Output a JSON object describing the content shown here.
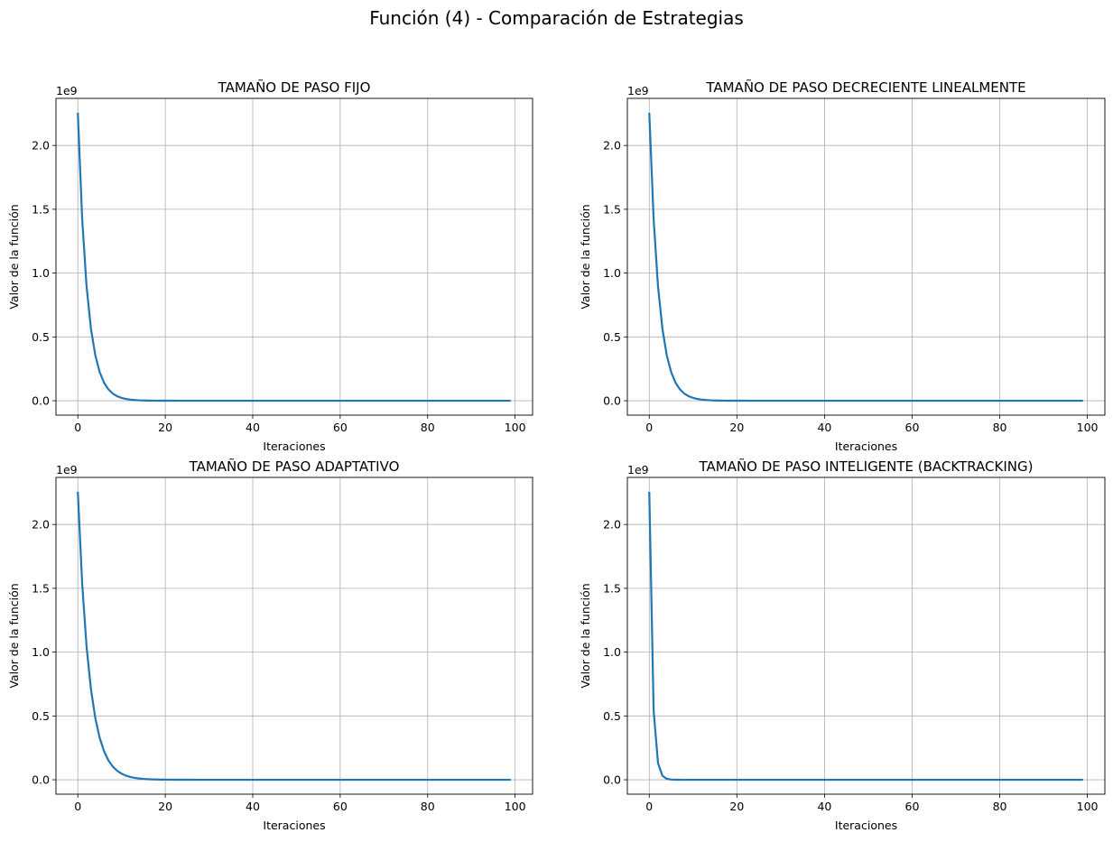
{
  "figure": {
    "title": "Función (4) - Comparación de Estrategias",
    "line_color": "#1f77b4",
    "grid_color": "#b0b0b0"
  },
  "chart_data": [
    {
      "type": "line",
      "title": "TAMAÑO DE PASO FIJO",
      "xlabel": "Iteraciones",
      "ylabel": "Valor de la función",
      "offset_text": "1e9",
      "grid": true,
      "xlim": [
        -5,
        104
      ],
      "ylim": [
        -0.1128,
        2.3688
      ],
      "xticks": [
        0,
        20,
        40,
        60,
        80,
        100
      ],
      "yticks": [
        0.0,
        0.5,
        1.0,
        1.5,
        2.0
      ],
      "ytick_labels": [
        "0.0",
        "0.5",
        "1.0",
        "1.5",
        "2.0"
      ],
      "y_scale_factor": 1000000000,
      "series": [
        {
          "x0": 0,
          "x1": 99,
          "y0": 2.256,
          "decay": 0.63,
          "floor": 0.0
        }
      ]
    },
    {
      "type": "line",
      "title": "TAMAÑO DE PASO DECRECIENTE LINEALMENTE",
      "xlabel": "Iteraciones",
      "ylabel": "Valor de la función",
      "offset_text": "1e9",
      "grid": true,
      "xlim": [
        -5,
        104
      ],
      "ylim": [
        -0.1128,
        2.3688
      ],
      "xticks": [
        0,
        20,
        40,
        60,
        80,
        100
      ],
      "yticks": [
        0.0,
        0.5,
        1.0,
        1.5,
        2.0
      ],
      "ytick_labels": [
        "0.0",
        "0.5",
        "1.0",
        "1.5",
        "2.0"
      ],
      "y_scale_factor": 1000000000,
      "series": [
        {
          "x0": 0,
          "x1": 99,
          "y0": 2.256,
          "decay": 0.63,
          "floor": 0.0
        }
      ]
    },
    {
      "type": "line",
      "title": "TAMAÑO DE PASO ADAPTATIVO",
      "xlabel": "Iteraciones",
      "ylabel": "Valor de la función",
      "offset_text": "1e9",
      "grid": true,
      "xlim": [
        -5,
        104
      ],
      "ylim": [
        -0.1128,
        2.3688
      ],
      "xticks": [
        0,
        20,
        40,
        60,
        80,
        100
      ],
      "yticks": [
        0.0,
        0.5,
        1.0,
        1.5,
        2.0
      ],
      "ytick_labels": [
        "0.0",
        "0.5",
        "1.0",
        "1.5",
        "2.0"
      ],
      "y_scale_factor": 1000000000,
      "series": [
        {
          "x0": 0,
          "x1": 99,
          "y0": 2.256,
          "decay": 0.68,
          "floor": 0.0
        }
      ]
    },
    {
      "type": "line",
      "title": "TAMAÑO DE PASO INTELIGENTE (BACKTRACKING)",
      "xlabel": "Iteraciones",
      "ylabel": "Valor de la función",
      "offset_text": "1e9",
      "grid": true,
      "xlim": [
        -5,
        104
      ],
      "ylim": [
        -0.1128,
        2.3688
      ],
      "xticks": [
        0,
        20,
        40,
        60,
        80,
        100
      ],
      "yticks": [
        0.0,
        0.5,
        1.0,
        1.5,
        2.0
      ],
      "ytick_labels": [
        "0.0",
        "0.5",
        "1.0",
        "1.5",
        "2.0"
      ],
      "y_scale_factor": 1000000000,
      "series": [
        {
          "x0": 0,
          "x1": 99,
          "y0": 2.256,
          "decay": 0.24,
          "floor": 0.0
        }
      ]
    }
  ]
}
